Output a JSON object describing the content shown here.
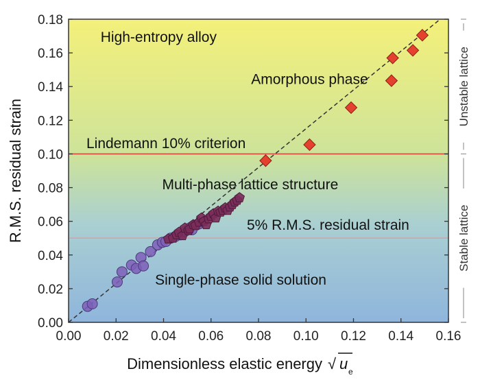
{
  "chart_data": {
    "type": "scatter",
    "xlabel": "Dimensionless elastic energy",
    "xlabel_sqrt_symbol": "√",
    "xlabel_var": "u",
    "xlabel_sub": "e",
    "ylabel": "R.M.S. residual strain",
    "xlim": [
      0.0,
      0.16
    ],
    "ylim": [
      0.0,
      0.18
    ],
    "xticks": [
      "0.00",
      "0.02",
      "0.04",
      "0.06",
      "0.08",
      "0.10",
      "0.12",
      "0.14",
      "0.16"
    ],
    "yticks": [
      "0.00",
      "0.02",
      "0.04",
      "0.06",
      "0.08",
      "0.10",
      "0.12",
      "0.14",
      "0.16",
      "0.18"
    ],
    "grid": false,
    "background_gradient": [
      "#f4f07a",
      "#cde39a",
      "#a9cfd2",
      "#8fb5dc"
    ],
    "reference_lines": [
      {
        "y": 0.1,
        "color": "#d9463b"
      },
      {
        "y": 0.05,
        "color": "#d8a0a8"
      }
    ],
    "trend_line": {
      "x": [
        0.0,
        0.16
      ],
      "y": [
        0.0,
        0.184
      ],
      "style": "dashed",
      "color": "#333333"
    },
    "annotations": [
      {
        "id": "hea",
        "text": "High-entropy alloy",
        "x": 0.0135,
        "y": 0.1665
      },
      {
        "id": "amorphous",
        "text": "Amorphous phase",
        "x": 0.1015,
        "y": 0.1415
      },
      {
        "id": "lindemann",
        "text": "Lindemann 10% criterion",
        "x": 0.0075,
        "y": 0.1035
      },
      {
        "id": "multiphase",
        "text": "Multi-phase lattice structure",
        "x": 0.0765,
        "y": 0.079
      },
      {
        "id": "rms5",
        "text": "5% R.M.S. residual strain",
        "x": 0.1435,
        "y": 0.055
      },
      {
        "id": "single",
        "text": "Single-phase solid solution",
        "x": 0.0725,
        "y": 0.0225
      }
    ],
    "side_labels": [
      {
        "text": "Unstable lattice",
        "y_from": 0.1,
        "y_to": 0.18
      },
      {
        "text": "Stable lattice",
        "y_from": 0.0,
        "y_to": 0.1
      }
    ],
    "series": [
      {
        "marker": "diamond",
        "color": "#e4412f",
        "x": [
          0.083,
          0.1015,
          0.119,
          0.136,
          0.1365,
          0.145,
          0.149
        ],
        "y": [
          0.096,
          0.1055,
          0.1275,
          0.1435,
          0.157,
          0.1615,
          0.1705
        ]
      },
      {
        "marker": "pentagon",
        "color": "#7a2c5a",
        "x": [
          0.042,
          0.044,
          0.0455,
          0.0465,
          0.048,
          0.049,
          0.0505,
          0.051,
          0.0525,
          0.0535,
          0.055,
          0.056,
          0.057,
          0.058,
          0.059,
          0.06,
          0.061,
          0.062,
          0.063,
          0.064,
          0.065,
          0.066,
          0.067,
          0.068,
          0.069,
          0.07,
          0.071,
          0.072
        ],
        "y": [
          0.0495,
          0.05,
          0.052,
          0.0535,
          0.0515,
          0.056,
          0.0545,
          0.0555,
          0.058,
          0.0575,
          0.0595,
          0.062,
          0.06,
          0.058,
          0.0615,
          0.063,
          0.0645,
          0.062,
          0.066,
          0.0655,
          0.0665,
          0.068,
          0.0665,
          0.0685,
          0.07,
          0.0715,
          0.0725,
          0.074
        ]
      },
      {
        "marker": "circle",
        "color": "#7e5fb8",
        "x": [
          0.008,
          0.01,
          0.0205,
          0.0225,
          0.0265,
          0.0285,
          0.0305,
          0.0315,
          0.0345,
          0.0375,
          0.0395,
          0.041,
          0.043,
          0.045,
          0.047,
          0.049,
          0.051,
          0.052,
          0.054,
          0.055
        ],
        "y": [
          0.0095,
          0.011,
          0.024,
          0.03,
          0.034,
          0.032,
          0.0385,
          0.0335,
          0.042,
          0.046,
          0.0475,
          0.048,
          0.05,
          0.051,
          0.052,
          0.054,
          0.056,
          0.055,
          0.058,
          0.0585
        ]
      }
    ]
  }
}
